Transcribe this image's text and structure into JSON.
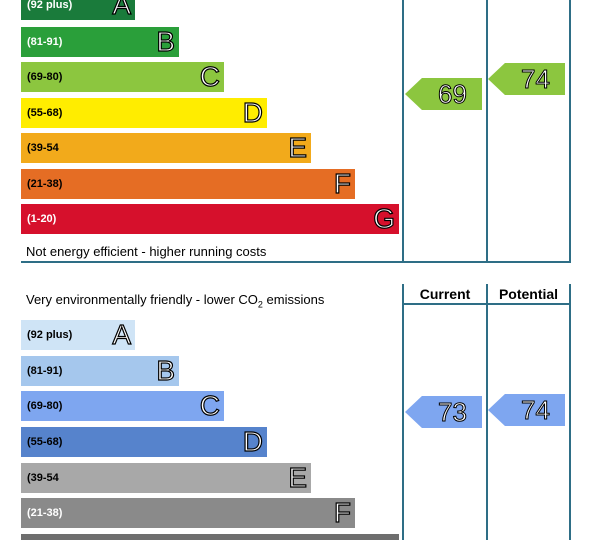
{
  "energy": {
    "bands": [
      {
        "range": "(92 plus)",
        "letter": "A",
        "color": "#1a7b3b"
      },
      {
        "range": "(81-91)",
        "letter": "B",
        "color": "#2a9f3a"
      },
      {
        "range": "(69-80)",
        "letter": "C",
        "color": "#8cc63f"
      },
      {
        "range": "(55-68)",
        "letter": "D",
        "color": "#ffed00"
      },
      {
        "range": "(39-54",
        "letter": "E",
        "color": "#f2aa1b"
      },
      {
        "range": "(21-38)",
        "letter": "F",
        "color": "#e56d24"
      },
      {
        "range": "(1-20)",
        "letter": "G",
        "color": "#d6102c"
      }
    ],
    "bottom_caption": "Not energy efficient - higher running costs",
    "current": {
      "value": "69",
      "color": "#8cc63f"
    },
    "potential": {
      "value": "74",
      "color": "#8cc63f"
    }
  },
  "environmental": {
    "top_caption": "Very environmentally friendly - lower CO",
    "top_caption_sub": "2",
    "top_caption_end": " emissions",
    "current_header": "Current",
    "potential_header": "Potential",
    "bands": [
      {
        "range": "(92 plus)",
        "letter": "A",
        "color": "#cfe4f6"
      },
      {
        "range": "(81-91)",
        "letter": "B",
        "color": "#a5c7ed"
      },
      {
        "range": "(69-80)",
        "letter": "C",
        "color": "#7ea6f0"
      },
      {
        "range": "(55-68)",
        "letter": "D",
        "color": "#5683cc"
      },
      {
        "range": "(39-54",
        "letter": "E",
        "color": "#a8a8a8"
      },
      {
        "range": "(21-38)",
        "letter": "F",
        "color": "#8a8a8a"
      },
      {
        "range": "",
        "letter": "",
        "color": "#6e6e6e"
      }
    ],
    "current": {
      "value": "73",
      "color": "#7ea6f0"
    },
    "potential": {
      "value": "74",
      "color": "#7ea6f0"
    }
  }
}
